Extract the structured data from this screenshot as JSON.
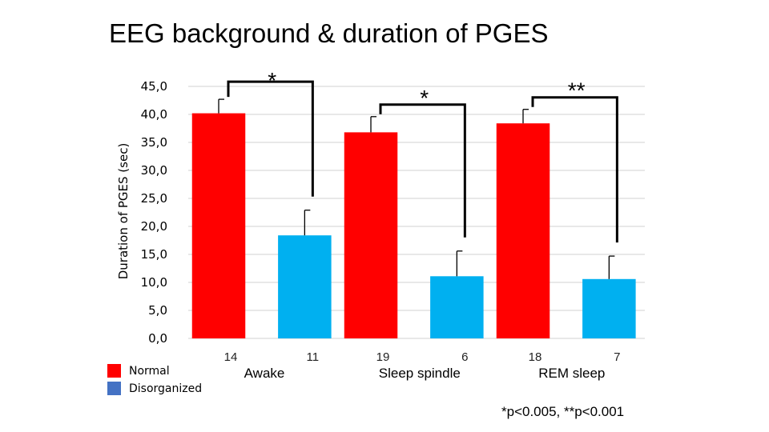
{
  "chart_data": {
    "type": "bar",
    "title": "EEG background & duration of PGES",
    "ylabel": "Duration of PGES (sec)",
    "ylim": [
      0,
      45
    ],
    "yticks": [
      "0,0",
      "5,0",
      "10,0",
      "15,0",
      "20,0",
      "25,0",
      "30,0",
      "35,0",
      "40,0",
      "45,0"
    ],
    "grid": true,
    "categories": [
      "Awake",
      "Sleep spindle",
      "REM sleep"
    ],
    "series": [
      {
        "name": "Normal",
        "color": "#ff0000",
        "values": [
          40.2,
          36.8,
          38.4
        ],
        "errors": [
          2.5,
          2.8,
          2.5
        ],
        "n": [
          "14",
          "19",
          "18"
        ]
      },
      {
        "name": "Disorganized",
        "color": "#00b0f0",
        "values": [
          18.4,
          11.1,
          10.6
        ],
        "errors": [
          4.5,
          4.5,
          4.1
        ],
        "n": [
          "11",
          "6",
          "7"
        ]
      }
    ],
    "significance": [
      "*",
      "*",
      "**"
    ],
    "legend": {
      "position": "bottom-left",
      "entries": [
        {
          "label": "Normal",
          "color": "#ff0000"
        },
        {
          "label": "Disorganized",
          "color": "#4472c4"
        }
      ]
    },
    "footnote": "*p<0.005, **p<0.001"
  }
}
